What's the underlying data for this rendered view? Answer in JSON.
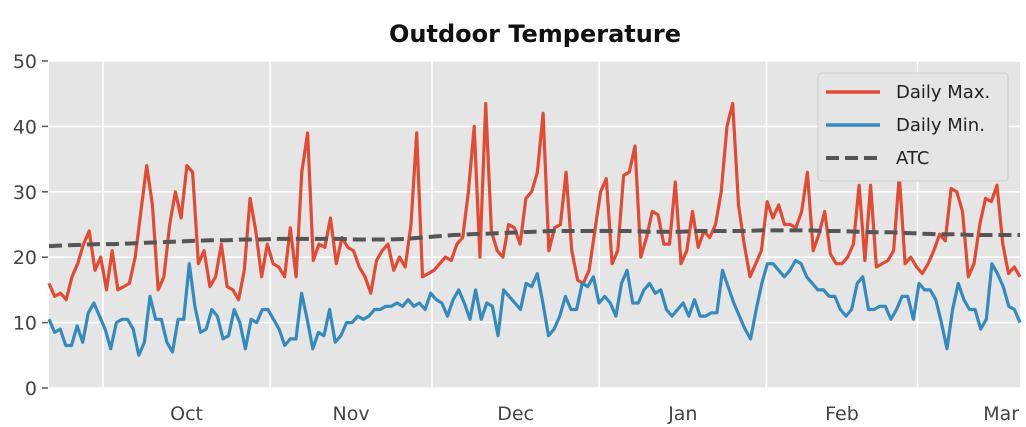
{
  "chart_data": {
    "type": "line",
    "title": "Outdoor Temperature",
    "xlabel": "",
    "ylabel": "",
    "ylim": [
      0,
      50
    ],
    "yticks": [
      0,
      10,
      20,
      30,
      40,
      50
    ],
    "x_start": "2017-09-21",
    "x_end": "2018-03-20",
    "month_ticks": [
      {
        "label": "Oct",
        "date": "2017-10-01"
      },
      {
        "label": "Nov",
        "date": "2017-11-01"
      },
      {
        "label": "Dec",
        "date": "2017-12-01"
      },
      {
        "label": "Jan",
        "date": "2018-01-01"
      },
      {
        "label": "Feb",
        "date": "2018-02-01"
      },
      {
        "label": "Mar",
        "date": "2018-03-01"
      }
    ],
    "grid": true,
    "legend_position": "top-right",
    "series": [
      {
        "name": "Daily Max.",
        "color": "#e24a33",
        "style": "solid",
        "values": [
          16,
          14,
          14.5,
          13.5,
          17,
          19,
          22,
          24,
          18,
          20,
          15,
          21,
          15,
          15.5,
          16,
          20,
          27,
          34,
          28,
          15,
          17,
          25,
          30,
          26,
          34,
          33,
          19,
          21,
          15.5,
          17,
          22,
          15.5,
          15,
          13.5,
          18,
          29,
          24,
          17,
          22,
          19,
          18.5,
          17,
          24.5,
          17,
          33,
          39,
          19.5,
          22,
          21.5,
          26,
          19,
          23,
          21.5,
          21,
          18.5,
          17,
          14.5,
          19.5,
          21,
          22,
          18,
          20,
          18.5,
          25,
          39,
          17,
          17.5,
          18,
          19,
          20,
          19.5,
          22,
          23,
          30,
          40,
          20,
          43.5,
          24,
          21,
          20,
          25,
          24.5,
          22,
          29,
          30,
          33,
          42,
          21,
          24.5,
          25,
          33,
          21,
          16.5,
          16,
          18,
          24,
          30,
          32,
          19,
          21,
          32.5,
          33,
          37,
          20,
          23,
          27,
          26.5,
          22,
          22,
          31.5,
          19,
          21,
          27,
          21.5,
          24,
          23,
          25,
          30,
          40,
          43.5,
          28,
          22,
          17,
          19,
          21,
          28.5,
          26,
          28,
          25,
          25,
          24.5,
          27,
          33,
          21,
          23.5,
          27,
          20.5,
          19,
          19,
          20,
          22,
          31,
          19.5,
          31,
          18.5,
          19,
          19.5,
          21,
          32.5,
          19,
          20,
          18.5,
          17.5,
          19,
          21,
          23.5,
          22.5,
          30.5,
          30,
          27,
          17,
          19,
          25,
          29,
          28.5,
          31,
          22,
          17.5,
          18.5,
          17
        ]
      },
      {
        "name": "Daily Min.",
        "color": "#348abd",
        "style": "solid",
        "values": [
          10.5,
          8.5,
          9,
          6.5,
          6.5,
          9.5,
          7,
          11.5,
          13,
          11,
          9,
          6,
          10,
          10.5,
          10.5,
          9,
          5,
          7,
          14,
          10.5,
          10.5,
          7,
          5.5,
          10.5,
          10.5,
          19,
          12.5,
          8.5,
          9,
          12,
          11,
          7.5,
          8,
          12,
          10,
          6,
          10.5,
          10,
          12,
          12,
          10.5,
          9,
          6.5,
          7.5,
          7.5,
          14.5,
          10.5,
          6,
          8.5,
          8,
          12,
          7,
          8,
          10,
          10,
          11,
          10.5,
          11,
          12,
          12,
          12.5,
          12.5,
          13,
          12.5,
          13.5,
          12.5,
          13,
          12,
          14.5,
          13.5,
          13,
          11,
          13.5,
          15,
          13,
          10.5,
          15,
          10.5,
          13,
          12.5,
          8,
          15,
          14,
          13,
          12,
          16,
          15.5,
          17.5,
          13,
          8,
          9,
          11,
          14,
          12,
          12,
          16,
          15.5,
          17,
          13,
          14,
          13,
          11,
          16,
          18,
          13,
          13,
          15,
          16,
          14.5,
          15,
          12,
          11,
          12,
          13,
          11,
          13.5,
          11,
          11,
          11.5,
          11.5,
          18,
          15.5,
          13,
          11,
          9,
          7.5,
          12,
          16,
          19,
          19,
          18,
          17,
          18,
          19.5,
          19,
          17,
          16,
          15,
          15,
          14,
          14,
          12,
          11,
          12,
          16,
          17,
          12,
          12,
          12.5,
          12.5,
          10.5,
          12,
          14,
          14,
          10.5,
          16,
          15,
          15,
          13.5,
          10,
          6,
          12,
          16,
          13.5,
          12,
          12,
          9,
          10.5,
          19,
          17.5,
          15.5,
          12.5,
          12,
          10
        ]
      },
      {
        "name": "ATC",
        "color": "#555555",
        "style": "dashed",
        "values": [
          21.7,
          21.8,
          21.9,
          22.0,
          22.0,
          22.1,
          22.2,
          22.3,
          22.4,
          22.5,
          22.6,
          22.6,
          22.7,
          22.7,
          22.8,
          22.8,
          22.8,
          22.8,
          22.8,
          22.7,
          22.7,
          22.7,
          22.8,
          23.0,
          23.2,
          23.4,
          23.5,
          23.6,
          23.7,
          23.8,
          23.9,
          24.0,
          24.0,
          24.0,
          24.0,
          24.0,
          24.0,
          23.9,
          23.9,
          23.9,
          24.0,
          24.0,
          24.0,
          24.0,
          24.1,
          24.1,
          24.1,
          24.1,
          24.0,
          24.0,
          23.9,
          23.8,
          23.8,
          23.7,
          23.6,
          23.5,
          23.5,
          23.4,
          23.4,
          23.4,
          23.4
        ]
      }
    ]
  }
}
